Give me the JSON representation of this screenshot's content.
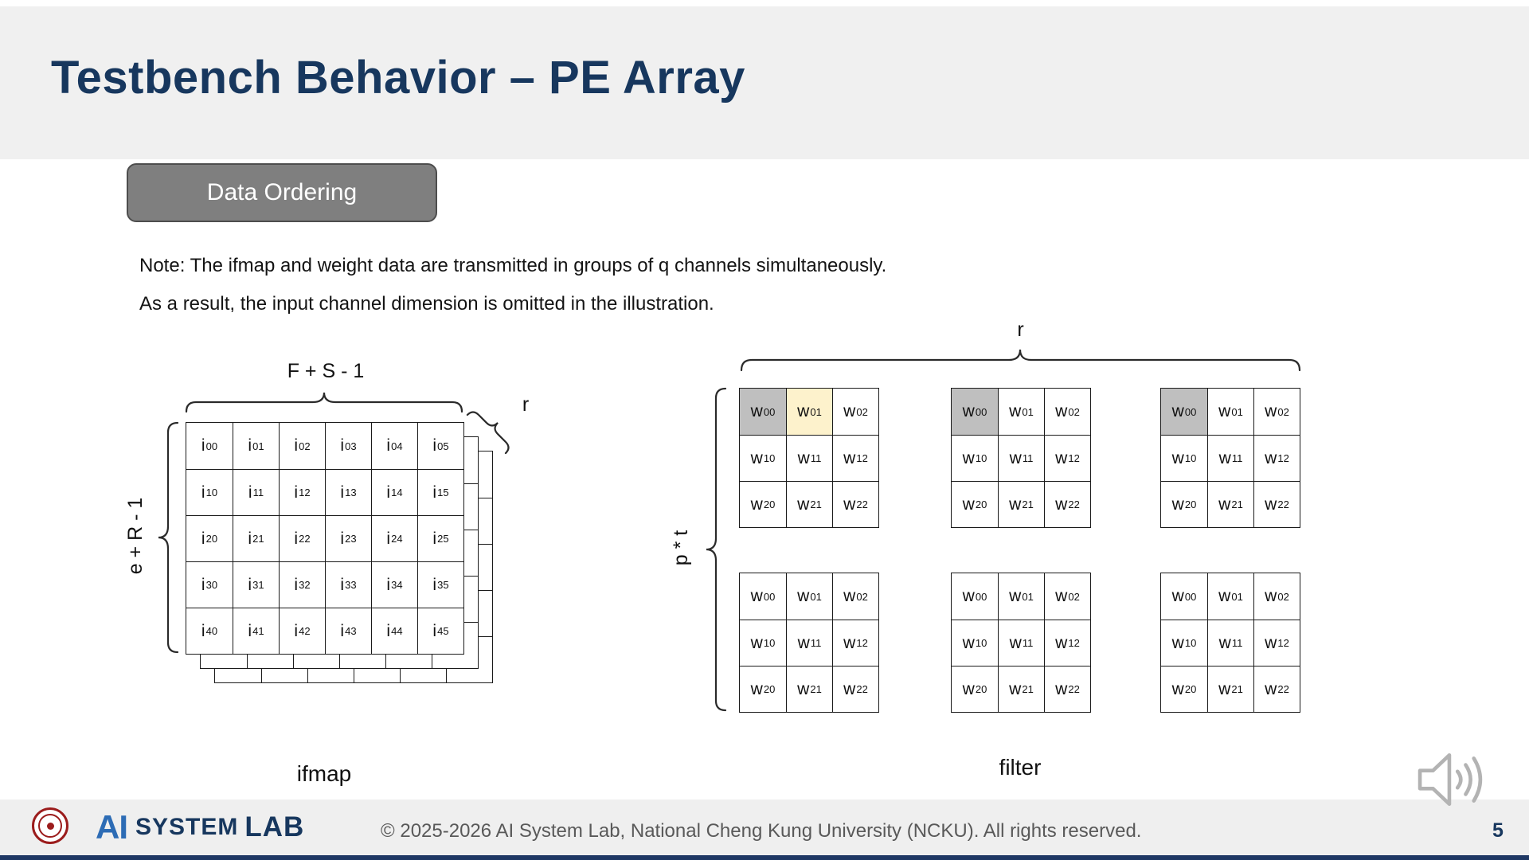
{
  "slide": {
    "title": "Testbench Behavior – PE Array",
    "badge": "Data Ordering",
    "note_line1": "Note: The ifmap and weight data are transmitted in groups of q channels simultaneously.",
    "note_line2": "As a result, the input channel dimension is omitted in the illustration."
  },
  "ifmap": {
    "label": "ifmap",
    "brace_top_label": "F + S - 1",
    "brace_left_label": "e + R - 1",
    "depth_label": "r",
    "cells": [
      [
        "i00",
        "i01",
        "i02",
        "i03",
        "i04",
        "i05"
      ],
      [
        "i10",
        "i11",
        "i12",
        "i13",
        "i14",
        "i15"
      ],
      [
        "i20",
        "i21",
        "i22",
        "i23",
        "i24",
        "i25"
      ],
      [
        "i30",
        "i31",
        "i32",
        "i33",
        "i34",
        "i35"
      ],
      [
        "i40",
        "i41",
        "i42",
        "i43",
        "i44",
        "i45"
      ]
    ]
  },
  "filter": {
    "label": "filter",
    "brace_top_label": "r",
    "brace_left_label": "p * t",
    "cells": [
      [
        "w00",
        "w01",
        "w02"
      ],
      [
        "w10",
        "w11",
        "w12"
      ],
      [
        "w20",
        "w21",
        "w22"
      ]
    ],
    "matrices": [
      {
        "highlights": [
          [
            0,
            0,
            "gray"
          ],
          [
            0,
            1,
            "yellow"
          ]
        ]
      },
      {
        "highlights": [
          [
            0,
            0,
            "gray"
          ]
        ]
      },
      {
        "highlights": [
          [
            0,
            0,
            "gray"
          ]
        ]
      },
      {
        "highlights": []
      },
      {
        "highlights": []
      },
      {
        "highlights": []
      }
    ],
    "highlight_colors": {
      "gray": "#bfbfbf",
      "yellow": "#fdf2cc"
    }
  },
  "footer": {
    "logo_ai": "AI",
    "logo_system": "SYSTEM",
    "logo_lab": "LAB",
    "copyright": "© 2025-2026 AI System Lab, National Cheng Kung University (NCKU). All rights reserved.",
    "page_number": "5"
  },
  "colors": {
    "title": "#17375E",
    "badge_bg": "#7f7f7f",
    "badge_border": "#4d4d4d",
    "header_band": "#f0f0f0",
    "footer_band": "#efefef",
    "accent_bar": "#1f3864",
    "logo_blue": "#2d6cb5",
    "seal_red": "#9b1c1c",
    "speaker_gray": "#b3b3b3"
  }
}
